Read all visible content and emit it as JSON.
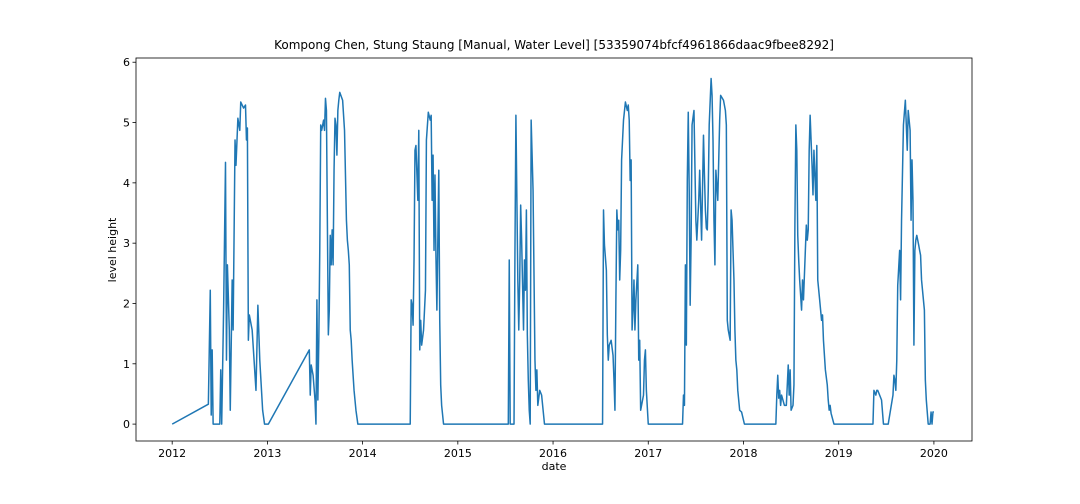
{
  "chart_data": {
    "type": "line",
    "title": "Kompong Chen, Stung Staung [Manual, Water Level] [53359074bfcf4961866daac9fbee8292]",
    "xlabel": "date",
    "ylabel": "level height",
    "color": "#1f77b4",
    "xlim": [
      2011.62,
      2020.4
    ],
    "ylim": [
      -0.28,
      6.07
    ],
    "xticks": [
      2012,
      2013,
      2014,
      2015,
      2016,
      2017,
      2018,
      2019,
      2020
    ],
    "yticks": [
      0,
      1,
      2,
      3,
      4,
      5,
      6
    ],
    "x": [
      2012.0,
      2012.38,
      2012.4,
      2012.41,
      2012.42,
      2012.43,
      2012.5,
      2012.51,
      2012.52,
      2012.54,
      2012.56,
      2012.57,
      2012.58,
      2012.6,
      2012.61,
      2012.63,
      2012.64,
      2012.66,
      2012.67,
      2012.69,
      2012.71,
      2012.72,
      2012.75,
      2012.77,
      2012.78,
      2012.79,
      2012.8,
      2012.81,
      2012.84,
      2012.86,
      2012.88,
      2012.9,
      2012.92,
      2012.95,
      2012.97,
      2012.99,
      2013.01,
      2013.44,
      2013.45,
      2013.46,
      2013.48,
      2013.5,
      2013.51,
      2013.52,
      2013.53,
      2013.54,
      2013.55,
      2013.56,
      2013.57,
      2013.59,
      2013.6,
      2013.61,
      2013.62,
      2013.64,
      2013.65,
      2013.66,
      2013.67,
      2013.68,
      2013.69,
      2013.7,
      2013.71,
      2013.72,
      2013.73,
      2013.74,
      2013.75,
      2013.76,
      2013.79,
      2013.81,
      2013.83,
      2013.84,
      2013.85,
      2013.86,
      2013.87,
      2013.88,
      2013.89,
      2013.91,
      2013.93,
      2013.95,
      2013.97,
      2014.5,
      2014.51,
      2014.52,
      2014.53,
      2014.54,
      2014.55,
      2014.56,
      2014.58,
      2014.59,
      2014.6,
      2014.61,
      2014.62,
      2014.64,
      2014.66,
      2014.67,
      2014.69,
      2014.71,
      2014.72,
      2014.73,
      2014.74,
      2014.75,
      2014.76,
      2014.77,
      2014.78,
      2014.8,
      2014.81,
      2014.82,
      2014.83,
      2014.85,
      2014.88,
      2015.53,
      2015.54,
      2015.55,
      2015.59,
      2015.6,
      2015.61,
      2015.63,
      2015.64,
      2015.65,
      2015.66,
      2015.67,
      2015.69,
      2015.7,
      2015.71,
      2015.72,
      2015.73,
      2015.74,
      2015.75,
      2015.76,
      2015.77,
      2015.79,
      2015.81,
      2015.82,
      2015.83,
      2015.84,
      2015.86,
      2015.88,
      2015.91,
      2015.93,
      2016.52,
      2016.53,
      2016.54,
      2016.56,
      2016.57,
      2016.58,
      2016.59,
      2016.61,
      2016.63,
      2016.64,
      2016.65,
      2016.66,
      2016.67,
      2016.68,
      2016.69,
      2016.7,
      2016.71,
      2016.72,
      2016.74,
      2016.76,
      2016.78,
      2016.79,
      2016.8,
      2016.81,
      2016.82,
      2016.83,
      2016.84,
      2016.85,
      2016.86,
      2016.87,
      2016.89,
      2016.9,
      2016.91,
      2016.92,
      2016.95,
      2016.96,
      2016.97,
      2016.98,
      2017.0,
      2017.02,
      2017.36,
      2017.37,
      2017.38,
      2017.39,
      2017.4,
      2017.41,
      2017.42,
      2017.43,
      2017.44,
      2017.45,
      2017.46,
      2017.48,
      2017.5,
      2017.51,
      2017.53,
      2017.54,
      2017.56,
      2017.58,
      2017.59,
      2017.6,
      2017.61,
      2017.62,
      2017.63,
      2017.64,
      2017.66,
      2017.67,
      2017.68,
      2017.69,
      2017.7,
      2017.71,
      2017.73,
      2017.75,
      2017.76,
      2017.79,
      2017.81,
      2017.82,
      2017.83,
      2017.84,
      2017.86,
      2017.87,
      2017.88,
      2017.9,
      2017.91,
      2017.92,
      2017.93,
      2017.94,
      2017.96,
      2017.98,
      2018.01,
      2018.03,
      2018.34,
      2018.35,
      2018.36,
      2018.37,
      2018.38,
      2018.39,
      2018.4,
      2018.43,
      2018.45,
      2018.47,
      2018.48,
      2018.49,
      2018.5,
      2018.52,
      2018.53,
      2018.54,
      2018.55,
      2018.56,
      2018.57,
      2018.58,
      2018.59,
      2018.61,
      2018.62,
      2018.63,
      2018.66,
      2018.67,
      2018.68,
      2018.69,
      2018.7,
      2018.72,
      2018.73,
      2018.74,
      2018.76,
      2018.77,
      2018.78,
      2018.8,
      2018.82,
      2018.83,
      2018.84,
      2018.86,
      2018.88,
      2018.89,
      2018.9,
      2018.91,
      2018.92,
      2018.95,
      2018.97,
      2019.36,
      2019.37,
      2019.39,
      2019.4,
      2019.41,
      2019.43,
      2019.45,
      2019.47,
      2019.5,
      2019.52,
      2019.57,
      2019.58,
      2019.59,
      2019.6,
      2019.61,
      2019.62,
      2019.64,
      2019.65,
      2019.66,
      2019.68,
      2019.7,
      2019.71,
      2019.72,
      2019.73,
      2019.75,
      2019.76,
      2019.77,
      2019.78,
      2019.79,
      2019.8,
      2019.81,
      2019.82,
      2019.83,
      2019.84,
      2019.85,
      2019.86,
      2019.87,
      2019.9,
      2019.91,
      2019.92,
      2019.94,
      2019.96,
      2019.97,
      2019.98,
      2019.99,
      2020.0
    ],
    "values": [
      0,
      0.33,
      2.22,
      0.15,
      1.23,
      0,
      0,
      0.9,
      0,
      1.89,
      4.34,
      1.06,
      2.64,
      1.56,
      0.23,
      2.39,
      1.56,
      4.71,
      4.29,
      5.07,
      4.87,
      5.34,
      5.24,
      5.29,
      4.71,
      4.91,
      1.39,
      1.81,
      1.56,
      1.06,
      0.56,
      1.97,
      1.06,
      0.23,
      0,
      0,
      0,
      1.23,
      0.48,
      0.98,
      0.81,
      0.4,
      0,
      2.06,
      0.4,
      1.39,
      2.88,
      4.96,
      4.87,
      5.04,
      4.87,
      5.4,
      5.2,
      1.48,
      1.89,
      3.13,
      2.64,
      3.22,
      2.64,
      4.21,
      5.07,
      4.96,
      4.46,
      5.2,
      5.37,
      5.5,
      5.37,
      4.87,
      3.38,
      3.05,
      2.88,
      2.64,
      1.56,
      1.39,
      1.06,
      0.56,
      0.23,
      0,
      0,
      0,
      2.06,
      1.97,
      1.64,
      2.72,
      4.54,
      4.62,
      3.71,
      4.87,
      1.23,
      1.72,
      1.31,
      1.56,
      2.22,
      4.71,
      5.17,
      5.04,
      5.12,
      3.71,
      4.46,
      2.88,
      4.13,
      2.8,
      1.89,
      4.21,
      1.72,
      0.65,
      0.31,
      0,
      0,
      0,
      2.72,
      0,
      0,
      2.88,
      5.12,
      2.39,
      1.56,
      2.39,
      3.63,
      3.05,
      1.56,
      2.72,
      2.22,
      3.55,
      1.48,
      0.73,
      0.23,
      0,
      5.04,
      3.88,
      1.06,
      0.56,
      0.9,
      0.31,
      0.56,
      0.48,
      0,
      0,
      0,
      3.55,
      2.97,
      2.55,
      1.48,
      1.06,
      1.31,
      1.39,
      1.14,
      0.73,
      0.23,
      2.06,
      3.55,
      3.22,
      3.38,
      2.39,
      2.88,
      4.38,
      5.04,
      5.34,
      5.2,
      5.29,
      5.04,
      4.04,
      4.38,
      1.56,
      1.89,
      2.39,
      1.56,
      2.06,
      2.64,
      1.06,
      1.39,
      0.23,
      0.48,
      1.06,
      1.23,
      0.56,
      0,
      0,
      0,
      0.48,
      0.31,
      2.64,
      1.31,
      4.04,
      5.17,
      3.88,
      1.97,
      3.05,
      4.96,
      5.2,
      3.38,
      3.05,
      3.71,
      4.21,
      3.05,
      4.79,
      4.13,
      3.55,
      3.25,
      3.22,
      3.88,
      4.96,
      5.73,
      5.45,
      4.71,
      3.38,
      2.64,
      4.21,
      3.71,
      5.04,
      5.45,
      5.37,
      5.2,
      4.96,
      1.72,
      1.56,
      1.39,
      3.55,
      3.38,
      2.39,
      1.56,
      1.06,
      0.9,
      0.56,
      0.23,
      0.2,
      0,
      0,
      0,
      0.48,
      0.81,
      0.43,
      0.56,
      0.31,
      0.48,
      0.31,
      0.31,
      0.98,
      0.48,
      0.9,
      0.23,
      0.31,
      0.65,
      3.3,
      4.96,
      4.54,
      3.13,
      2.72,
      2.39,
      1.89,
      2.39,
      2.06,
      3.3,
      3.05,
      3.22,
      4.54,
      5.12,
      4.29,
      3.8,
      4.54,
      3.71,
      4.62,
      2.39,
      2.06,
      1.72,
      1.81,
      1.39,
      0.9,
      0.65,
      0.4,
      0.23,
      0.31,
      0.18,
      0,
      0,
      0,
      0.56,
      0.48,
      0.56,
      0.56,
      0.48,
      0.4,
      0,
      0,
      0,
      0.48,
      0.81,
      0.73,
      0.56,
      1.06,
      2.3,
      2.88,
      2.06,
      3.38,
      4.96,
      5.37,
      4.96,
      4.54,
      5.2,
      4.87,
      3.38,
      4.38,
      3.71,
      1.31,
      2.88,
      3.05,
      3.13,
      3.05,
      2.97,
      2.88,
      2.8,
      2.39,
      1.89,
      0.73,
      0.4,
      0,
      0,
      0.2,
      0,
      0.2,
      0.2
    ]
  }
}
